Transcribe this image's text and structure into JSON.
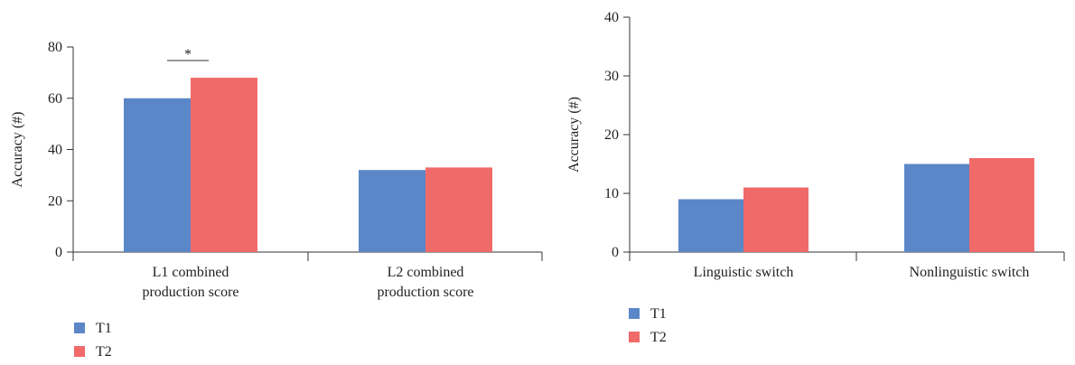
{
  "chart_data": [
    {
      "type": "bar",
      "ylabel": "Accuracy (#)",
      "ylim": [
        0,
        90
      ],
      "yticks": [
        0,
        20,
        40,
        60,
        80
      ],
      "categories": [
        [
          "L1 combined",
          "production score"
        ],
        [
          "L2 combined",
          "production score"
        ]
      ],
      "series": [
        {
          "name": "T1",
          "color": "#5b87c8",
          "values": [
            60,
            32
          ]
        },
        {
          "name": "T2",
          "color": "#f06a6a",
          "values": [
            68,
            33
          ]
        }
      ],
      "annotations": [
        {
          "text": "*",
          "category_index": 0,
          "between": [
            "T1",
            "T2"
          ]
        }
      ],
      "legend": "bottom-left"
    },
    {
      "type": "bar",
      "ylabel": "Accuracy (#)",
      "ylim": [
        0,
        40
      ],
      "yticks": [
        0,
        10,
        20,
        30,
        40
      ],
      "categories": [
        [
          "Linguistic switch"
        ],
        [
          "Nonlinguistic switch"
        ]
      ],
      "series": [
        {
          "name": "T1",
          "color": "#5b87c8",
          "values": [
            9,
            15
          ]
        },
        {
          "name": "T2",
          "color": "#f06a6a",
          "values": [
            11,
            16
          ]
        }
      ],
      "annotations": [],
      "legend": "bottom-left"
    }
  ]
}
